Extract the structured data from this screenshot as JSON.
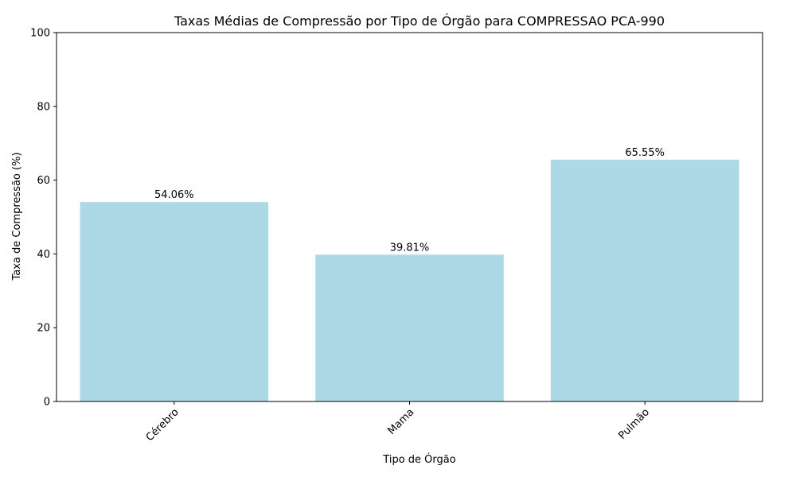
{
  "chart_data": {
    "type": "bar",
    "title": "Taxas Médias de Compressão por Tipo de Órgão para COMPRESSAO PCA-990",
    "xlabel": "Tipo de Órgão",
    "ylabel": "Taxa de Compressão (%)",
    "categories": [
      "Cérebro",
      "Mama",
      "Pulmão"
    ],
    "values": [
      54.06,
      39.81,
      65.55
    ],
    "data_labels": [
      "54.06%",
      "39.81%",
      "65.55%"
    ],
    "ylim": [
      0,
      100
    ],
    "yticks": [
      0,
      20,
      40,
      60,
      80,
      100
    ],
    "ytick_labels": [
      "0",
      "20",
      "40",
      "60",
      "80",
      "100"
    ],
    "grid": false,
    "bar_color": "#add8e6",
    "xtick_rotation_deg": 45
  }
}
